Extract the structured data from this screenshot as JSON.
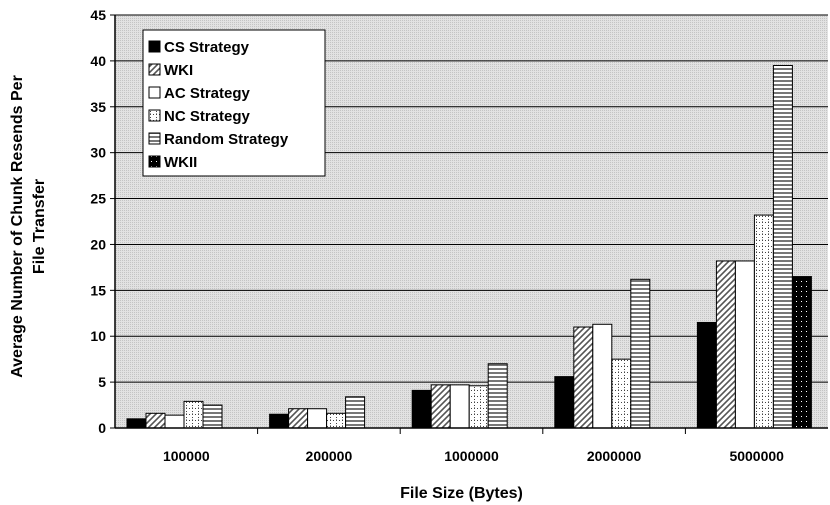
{
  "chart_data": {
    "type": "bar",
    "title": "",
    "xlabel": "File Size (Bytes)",
    "ylabel_lines": [
      "Average Number of Chunk Resends Per",
      "File Transfer"
    ],
    "categories": [
      "100000",
      "200000",
      "1000000",
      "2000000",
      "5000000"
    ],
    "ylim": [
      0,
      45
    ],
    "yticks": [
      0,
      5,
      10,
      15,
      20,
      25,
      30,
      35,
      40,
      45
    ],
    "grid": true,
    "legend_position": "top-left",
    "series": [
      {
        "name": "CS Strategy",
        "values": [
          1.0,
          1.5,
          4.1,
          5.6,
          11.5
        ],
        "fill": "solid-black"
      },
      {
        "name": "WKI",
        "values": [
          1.6,
          2.1,
          4.7,
          11.0,
          18.2
        ],
        "fill": "diagonal-hatch"
      },
      {
        "name": "AC Strategy",
        "values": [
          1.4,
          2.1,
          4.7,
          11.3,
          18.2
        ],
        "fill": "white"
      },
      {
        "name": "NC Strategy",
        "values": [
          2.9,
          1.6,
          4.6,
          7.5,
          23.2
        ],
        "fill": "dotted-grid"
      },
      {
        "name": "Random Strategy",
        "values": [
          2.5,
          3.4,
          7.0,
          16.2,
          39.5
        ],
        "fill": "horizontal-stripes"
      },
      {
        "name": "WKII",
        "values": [
          null,
          null,
          null,
          null,
          16.5
        ],
        "fill": "dotted-black"
      }
    ]
  }
}
